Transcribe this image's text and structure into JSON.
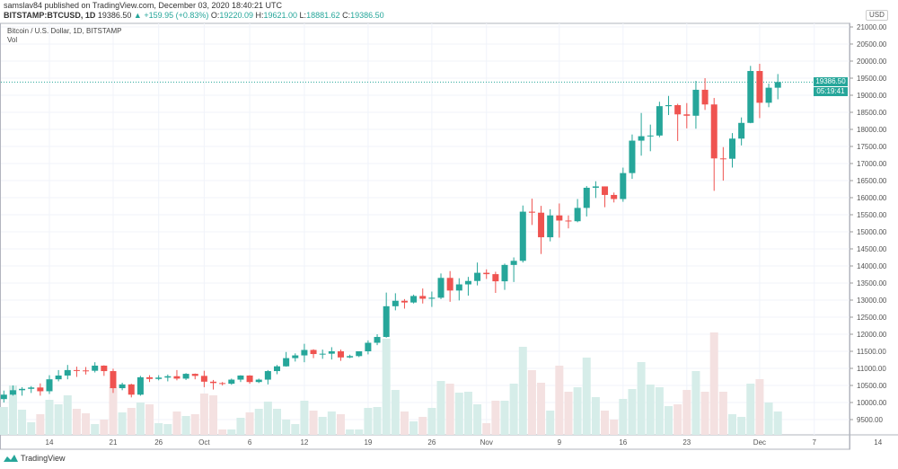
{
  "header": {
    "published": "samslav84 published on TradingView.com, December 03, 2020 18:40:21 UTC",
    "symbol": "BITSTAMP:BTCUSD, 1D",
    "last": "19386.50",
    "change": "▲ +159.95 (+0.83%)",
    "o_label": "O:",
    "o": "19220.09",
    "h_label": "H:",
    "h": "19621.00",
    "l_label": "L:",
    "l": "18881.62",
    "c_label": "C:",
    "c": "19386.50"
  },
  "legend": {
    "title": "Bitcoin / U.S. Dollar, 1D, BITSTAMP",
    "vol": "Vol"
  },
  "axis": {
    "currency": "USD",
    "price_label": "19386.50",
    "countdown": "05:19:41"
  },
  "footer": {
    "brand": "TradingView"
  },
  "colors": {
    "up": "#26a69a",
    "down": "#ef5350",
    "vol_up": "#d6ede9",
    "vol_down": "#f4e1e1",
    "grid": "#f0f3fa"
  },
  "chart_data": {
    "type": "candlestick",
    "ylim": [
      9200,
      21300
    ],
    "grid": true,
    "y_ticks": [
      "21000.00",
      "20500.00",
      "20000.00",
      "19500.00",
      "19000.00",
      "18500.00",
      "18000.00",
      "17500.00",
      "17000.00",
      "16500.00",
      "16000.00",
      "15500.00",
      "15000.00",
      "14500.00",
      "14000.00",
      "13500.00",
      "13000.00",
      "12500.00",
      "12000.00",
      "11500.00",
      "11000.00",
      "10500.00",
      "10000.00",
      "9500.00"
    ],
    "x_ticks": [
      {
        "label": "14",
        "date": "2020-09-14"
      },
      {
        "label": "21",
        "date": "2020-09-21"
      },
      {
        "label": "26",
        "date": "2020-09-26"
      },
      {
        "label": "Oct",
        "date": "2020-10-01"
      },
      {
        "label": "6",
        "date": "2020-10-06"
      },
      {
        "label": "12",
        "date": "2020-10-12"
      },
      {
        "label": "19",
        "date": "2020-10-19"
      },
      {
        "label": "26",
        "date": "2020-10-26"
      },
      {
        "label": "Nov",
        "date": "2020-11-01"
      },
      {
        "label": "9",
        "date": "2020-11-09"
      },
      {
        "label": "16",
        "date": "2020-11-16"
      },
      {
        "label": "23",
        "date": "2020-11-23"
      },
      {
        "label": "Dec",
        "date": "2020-12-01"
      },
      {
        "label": "7",
        "date": "2020-12-07"
      },
      {
        "label": "14",
        "date": "2020-12-14"
      }
    ],
    "current_price": 19386.5,
    "volume_note": "relative volume",
    "candles": [
      {
        "d": "2020-09-09",
        "o": 10100,
        "h": 10350,
        "l": 10000,
        "c": 10230,
        "v": 31
      },
      {
        "d": "2020-09-10",
        "o": 10230,
        "h": 10500,
        "l": 10200,
        "c": 10360,
        "v": 55
      },
      {
        "d": "2020-09-11",
        "o": 10360,
        "h": 10450,
        "l": 10200,
        "c": 10400,
        "v": 28
      },
      {
        "d": "2020-09-12",
        "o": 10400,
        "h": 10480,
        "l": 10280,
        "c": 10440,
        "v": 14
      },
      {
        "d": "2020-09-13",
        "o": 10440,
        "h": 10560,
        "l": 10200,
        "c": 10330,
        "v": 23
      },
      {
        "d": "2020-09-14",
        "o": 10330,
        "h": 10800,
        "l": 10250,
        "c": 10680,
        "v": 39
      },
      {
        "d": "2020-09-15",
        "o": 10680,
        "h": 10950,
        "l": 10620,
        "c": 10790,
        "v": 34
      },
      {
        "d": "2020-09-16",
        "o": 10790,
        "h": 11100,
        "l": 10680,
        "c": 10950,
        "v": 44
      },
      {
        "d": "2020-09-17",
        "o": 10950,
        "h": 11050,
        "l": 10750,
        "c": 10940,
        "v": 29
      },
      {
        "d": "2020-09-18",
        "o": 10940,
        "h": 11040,
        "l": 10820,
        "c": 10930,
        "v": 24
      },
      {
        "d": "2020-09-19",
        "o": 10930,
        "h": 11180,
        "l": 10880,
        "c": 11080,
        "v": 12
      },
      {
        "d": "2020-09-20",
        "o": 11080,
        "h": 11090,
        "l": 10780,
        "c": 10920,
        "v": 17
      },
      {
        "d": "2020-09-21",
        "o": 10920,
        "h": 10990,
        "l": 10280,
        "c": 10420,
        "v": 53
      },
      {
        "d": "2020-09-22",
        "o": 10420,
        "h": 10580,
        "l": 10360,
        "c": 10530,
        "v": 25
      },
      {
        "d": "2020-09-23",
        "o": 10530,
        "h": 10550,
        "l": 10150,
        "c": 10230,
        "v": 30
      },
      {
        "d": "2020-09-24",
        "o": 10230,
        "h": 10780,
        "l": 10200,
        "c": 10740,
        "v": 36
      },
      {
        "d": "2020-09-25",
        "o": 10740,
        "h": 10800,
        "l": 10600,
        "c": 10690,
        "v": 34
      },
      {
        "d": "2020-09-26",
        "o": 10690,
        "h": 10800,
        "l": 10650,
        "c": 10730,
        "v": 13
      },
      {
        "d": "2020-09-27",
        "o": 10730,
        "h": 10820,
        "l": 10620,
        "c": 10770,
        "v": 12
      },
      {
        "d": "2020-09-28",
        "o": 10770,
        "h": 10950,
        "l": 10650,
        "c": 10700,
        "v": 26
      },
      {
        "d": "2020-09-29",
        "o": 10700,
        "h": 10860,
        "l": 10660,
        "c": 10840,
        "v": 21
      },
      {
        "d": "2020-09-30",
        "o": 10840,
        "h": 10850,
        "l": 10680,
        "c": 10780,
        "v": 23
      },
      {
        "d": "2020-10-01",
        "o": 10780,
        "h": 10930,
        "l": 10450,
        "c": 10610,
        "v": 46
      },
      {
        "d": "2020-10-02",
        "o": 10610,
        "h": 10660,
        "l": 10380,
        "c": 10570,
        "v": 44
      },
      {
        "d": "2020-10-03",
        "o": 10570,
        "h": 10600,
        "l": 10500,
        "c": 10550,
        "v": 6
      },
      {
        "d": "2020-10-04",
        "o": 10550,
        "h": 10700,
        "l": 10520,
        "c": 10670,
        "v": 6
      },
      {
        "d": "2020-10-05",
        "o": 10670,
        "h": 10800,
        "l": 10600,
        "c": 10790,
        "v": 19
      },
      {
        "d": "2020-10-06",
        "o": 10790,
        "h": 10800,
        "l": 10550,
        "c": 10600,
        "v": 25
      },
      {
        "d": "2020-10-07",
        "o": 10600,
        "h": 10700,
        "l": 10570,
        "c": 10670,
        "v": 29
      },
      {
        "d": "2020-10-08",
        "o": 10670,
        "h": 10950,
        "l": 10530,
        "c": 10920,
        "v": 37
      },
      {
        "d": "2020-10-09",
        "o": 10920,
        "h": 11100,
        "l": 10830,
        "c": 11060,
        "v": 29
      },
      {
        "d": "2020-10-10",
        "o": 11060,
        "h": 11480,
        "l": 11050,
        "c": 11300,
        "v": 17
      },
      {
        "d": "2020-10-11",
        "o": 11300,
        "h": 11440,
        "l": 11200,
        "c": 11380,
        "v": 12
      },
      {
        "d": "2020-10-12",
        "o": 11380,
        "h": 11720,
        "l": 11180,
        "c": 11540,
        "v": 38
      },
      {
        "d": "2020-10-13",
        "o": 11540,
        "h": 11560,
        "l": 11300,
        "c": 11420,
        "v": 27
      },
      {
        "d": "2020-10-14",
        "o": 11420,
        "h": 11550,
        "l": 11280,
        "c": 11430,
        "v": 20
      },
      {
        "d": "2020-10-15",
        "o": 11430,
        "h": 11620,
        "l": 11260,
        "c": 11500,
        "v": 26
      },
      {
        "d": "2020-10-16",
        "o": 11500,
        "h": 11550,
        "l": 11220,
        "c": 11320,
        "v": 23
      },
      {
        "d": "2020-10-17",
        "o": 11320,
        "h": 11400,
        "l": 11300,
        "c": 11360,
        "v": 6
      },
      {
        "d": "2020-10-18",
        "o": 11360,
        "h": 11480,
        "l": 11330,
        "c": 11500,
        "v": 6
      },
      {
        "d": "2020-10-19",
        "o": 11500,
        "h": 11820,
        "l": 11410,
        "c": 11750,
        "v": 30
      },
      {
        "d": "2020-10-20",
        "o": 11750,
        "h": 12000,
        "l": 11680,
        "c": 11920,
        "v": 31
      },
      {
        "d": "2020-10-21",
        "o": 11920,
        "h": 13220,
        "l": 11900,
        "c": 12820,
        "v": 107
      },
      {
        "d": "2020-10-22",
        "o": 12820,
        "h": 13200,
        "l": 12700,
        "c": 12980,
        "v": 50
      },
      {
        "d": "2020-10-23",
        "o": 12980,
        "h": 13030,
        "l": 12750,
        "c": 12930,
        "v": 26
      },
      {
        "d": "2020-10-24",
        "o": 12930,
        "h": 13160,
        "l": 12900,
        "c": 13120,
        "v": 15
      },
      {
        "d": "2020-10-25",
        "o": 13120,
        "h": 13340,
        "l": 12900,
        "c": 13040,
        "v": 20
      },
      {
        "d": "2020-10-26",
        "o": 13040,
        "h": 13250,
        "l": 12800,
        "c": 13070,
        "v": 30
      },
      {
        "d": "2020-10-27",
        "o": 13070,
        "h": 13780,
        "l": 13030,
        "c": 13650,
        "v": 60
      },
      {
        "d": "2020-10-28",
        "o": 13650,
        "h": 13850,
        "l": 12950,
        "c": 13280,
        "v": 57
      },
      {
        "d": "2020-10-29",
        "o": 13280,
        "h": 13640,
        "l": 12990,
        "c": 13460,
        "v": 47
      },
      {
        "d": "2020-10-30",
        "o": 13460,
        "h": 13680,
        "l": 13130,
        "c": 13560,
        "v": 48
      },
      {
        "d": "2020-10-31",
        "o": 13560,
        "h": 14100,
        "l": 13430,
        "c": 13800,
        "v": 34
      },
      {
        "d": "2020-11-01",
        "o": 13800,
        "h": 13900,
        "l": 13620,
        "c": 13760,
        "v": 13
      },
      {
        "d": "2020-11-02",
        "o": 13760,
        "h": 13830,
        "l": 13210,
        "c": 13550,
        "v": 38
      },
      {
        "d": "2020-11-03",
        "o": 13550,
        "h": 14070,
        "l": 13300,
        "c": 14030,
        "v": 38
      },
      {
        "d": "2020-11-04",
        "o": 14030,
        "h": 14250,
        "l": 13530,
        "c": 14150,
        "v": 57
      },
      {
        "d": "2020-11-05",
        "o": 14150,
        "h": 15770,
        "l": 14100,
        "c": 15590,
        "v": 98
      },
      {
        "d": "2020-11-06",
        "o": 15590,
        "h": 15970,
        "l": 15200,
        "c": 15560,
        "v": 72
      },
      {
        "d": "2020-11-07",
        "o": 15560,
        "h": 15760,
        "l": 14350,
        "c": 14840,
        "v": 58
      },
      {
        "d": "2020-11-08",
        "o": 14840,
        "h": 15660,
        "l": 14720,
        "c": 15480,
        "v": 27
      },
      {
        "d": "2020-11-09",
        "o": 15480,
        "h": 15830,
        "l": 14830,
        "c": 15330,
        "v": 77
      },
      {
        "d": "2020-11-10",
        "o": 15330,
        "h": 15480,
        "l": 15100,
        "c": 15310,
        "v": 48
      },
      {
        "d": "2020-11-11",
        "o": 15310,
        "h": 15960,
        "l": 15280,
        "c": 15700,
        "v": 53
      },
      {
        "d": "2020-11-12",
        "o": 15700,
        "h": 16340,
        "l": 15450,
        "c": 16290,
        "v": 86
      },
      {
        "d": "2020-11-13",
        "o": 16290,
        "h": 16480,
        "l": 15990,
        "c": 16330,
        "v": 42
      },
      {
        "d": "2020-11-14",
        "o": 16330,
        "h": 16330,
        "l": 15720,
        "c": 16080,
        "v": 27
      },
      {
        "d": "2020-11-15",
        "o": 16080,
        "h": 16150,
        "l": 15860,
        "c": 15960,
        "v": 17
      },
      {
        "d": "2020-11-16",
        "o": 15960,
        "h": 16880,
        "l": 15880,
        "c": 16720,
        "v": 40
      },
      {
        "d": "2020-11-17",
        "o": 16720,
        "h": 17850,
        "l": 16550,
        "c": 17670,
        "v": 51
      },
      {
        "d": "2020-11-18",
        "o": 17670,
        "h": 18480,
        "l": 17230,
        "c": 17800,
        "v": 81
      },
      {
        "d": "2020-11-19",
        "o": 17800,
        "h": 18140,
        "l": 17360,
        "c": 17820,
        "v": 56
      },
      {
        "d": "2020-11-20",
        "o": 17820,
        "h": 18810,
        "l": 17770,
        "c": 18680,
        "v": 53
      },
      {
        "d": "2020-11-21",
        "o": 18680,
        "h": 18980,
        "l": 18420,
        "c": 18710,
        "v": 32
      },
      {
        "d": "2020-11-22",
        "o": 18710,
        "h": 18750,
        "l": 17660,
        "c": 18440,
        "v": 34
      },
      {
        "d": "2020-11-23",
        "o": 18440,
        "h": 18770,
        "l": 18030,
        "c": 18400,
        "v": 50
      },
      {
        "d": "2020-11-24",
        "o": 18400,
        "h": 19420,
        "l": 18020,
        "c": 19160,
        "v": 71
      },
      {
        "d": "2020-11-25",
        "o": 19160,
        "h": 19500,
        "l": 18570,
        "c": 18730,
        "v": 48
      },
      {
        "d": "2020-11-26",
        "o": 18730,
        "h": 18920,
        "l": 16200,
        "c": 17150,
        "v": 114
      },
      {
        "d": "2020-11-27",
        "o": 17150,
        "h": 17480,
        "l": 16500,
        "c": 17140,
        "v": 48
      },
      {
        "d": "2020-11-28",
        "o": 17140,
        "h": 17890,
        "l": 16880,
        "c": 17730,
        "v": 23
      },
      {
        "d": "2020-11-29",
        "o": 17730,
        "h": 18350,
        "l": 17530,
        "c": 18190,
        "v": 20
      },
      {
        "d": "2020-11-30",
        "o": 18190,
        "h": 19860,
        "l": 18180,
        "c": 19710,
        "v": 57
      },
      {
        "d": "2020-12-01",
        "o": 19710,
        "h": 19920,
        "l": 18330,
        "c": 18780,
        "v": 62
      },
      {
        "d": "2020-12-02",
        "o": 18780,
        "h": 19340,
        "l": 18650,
        "c": 19220.09,
        "v": 36
      },
      {
        "d": "2020-12-03",
        "o": 19220.09,
        "h": 19621,
        "l": 18881.62,
        "c": 19386.5,
        "v": 26
      }
    ]
  }
}
